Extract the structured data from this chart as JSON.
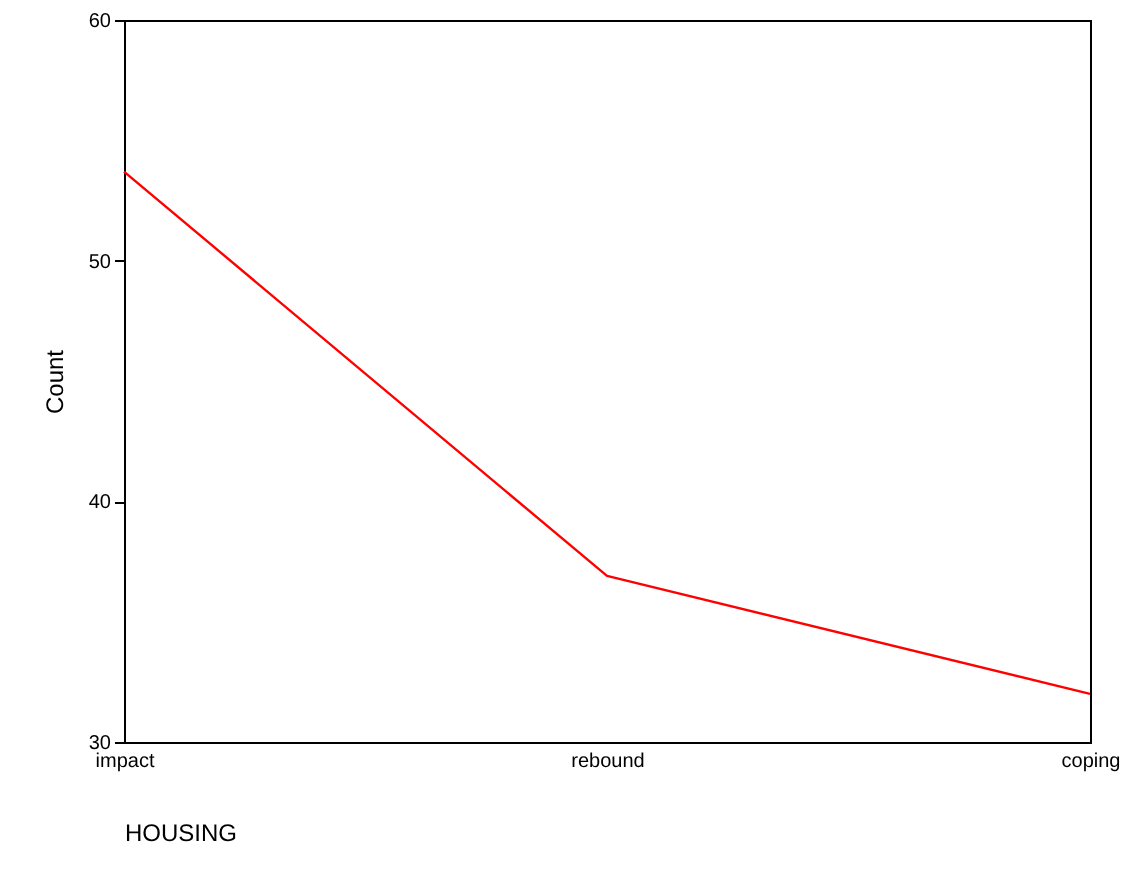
{
  "chart_data": {
    "type": "line",
    "xlabel": "HOUSING",
    "ylabel": "Count",
    "categories": [
      "impact",
      "rebound",
      "coping"
    ],
    "series": [
      {
        "color": "#ff0000",
        "values": [
          53.7,
          36.9,
          32.0
        ]
      }
    ],
    "ylim": [
      30,
      60
    ],
    "yticks": [
      30,
      40,
      50,
      60
    ],
    "grid": false
  }
}
